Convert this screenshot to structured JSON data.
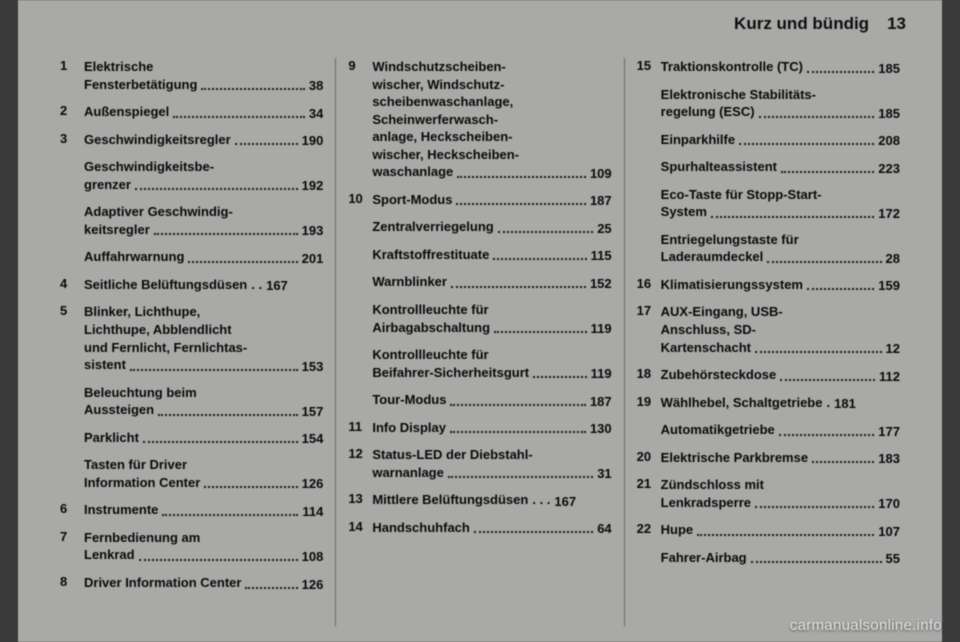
{
  "header": {
    "title": "Kurz und bündig",
    "page": "13"
  },
  "watermark": "carmanualsonline.info",
  "columns": [
    [
      {
        "num": "1",
        "lines": [
          "Elektrische",
          "Fensterbetätigung"
        ],
        "page": "38"
      },
      {
        "num": "2",
        "lines": [
          "Außenspiegel"
        ],
        "page": "34"
      },
      {
        "num": "3",
        "lines": [
          "Geschwindigkeitsregler"
        ],
        "page": "190"
      },
      {
        "num": "",
        "lines": [
          "Geschwindigkeitsbe-",
          "grenzer"
        ],
        "page": "192"
      },
      {
        "num": "",
        "lines": [
          "Adaptiver Geschwindig-",
          "keitsregler"
        ],
        "page": "193"
      },
      {
        "num": "",
        "lines": [
          "Auffahrwarnung"
        ],
        "page": "201"
      },
      {
        "num": "4",
        "lines": [
          "Seitliche Belüftungsdüsen"
        ],
        "page": "167",
        "nodots": true,
        "sep": ". ."
      },
      {
        "num": "5",
        "lines": [
          "Blinker, Lichthupe,",
          "Lichthupe, Abblendlicht",
          "und Fernlicht, Fernlichtas-",
          "sistent"
        ],
        "page": "153"
      },
      {
        "num": "",
        "lines": [
          "Beleuchtung beim",
          "Aussteigen"
        ],
        "page": "157"
      },
      {
        "num": "",
        "lines": [
          "Parklicht"
        ],
        "page": "154"
      },
      {
        "num": "",
        "lines": [
          "Tasten für Driver",
          "Information Center"
        ],
        "page": "126"
      },
      {
        "num": "6",
        "lines": [
          "Instrumente"
        ],
        "page": "114"
      },
      {
        "num": "7",
        "lines": [
          "Fernbedienung am",
          "Lenkrad"
        ],
        "page": "108"
      },
      {
        "num": "8",
        "lines": [
          "Driver Information Center"
        ],
        "page": "126"
      }
    ],
    [
      {
        "num": "9",
        "lines": [
          "Windschutzscheiben-",
          "wischer, Windschutz-",
          "scheibenwaschanlage,",
          "Scheinwerferwasch-",
          "anlage, Heckscheiben-",
          "wischer, Heckscheiben-",
          "waschanlage"
        ],
        "page": "109"
      },
      {
        "num": "10",
        "lines": [
          "Sport-Modus"
        ],
        "page": "187"
      },
      {
        "num": "",
        "lines": [
          "Zentralverriegelung"
        ],
        "page": "25"
      },
      {
        "num": "",
        "lines": [
          "Kraftstoffrestituate"
        ],
        "page": "115"
      },
      {
        "num": "",
        "lines": [
          "Warnblinker"
        ],
        "page": "152"
      },
      {
        "num": "",
        "lines": [
          "Kontrollleuchte für",
          "Airbagabschaltung"
        ],
        "page": "119"
      },
      {
        "num": "",
        "lines": [
          "Kontrollleuchte für",
          "Beifahrer-Sicherheitsgurt"
        ],
        "page": "119"
      },
      {
        "num": "",
        "lines": [
          "Tour-Modus"
        ],
        "page": "187"
      },
      {
        "num": "11",
        "lines": [
          "Info Display"
        ],
        "page": "130"
      },
      {
        "num": "12",
        "lines": [
          "Status-LED der Diebstahl-",
          "warnanlage"
        ],
        "page": "31"
      },
      {
        "num": "13",
        "lines": [
          "Mittlere Belüftungsdüsen"
        ],
        "page": "167",
        "nodots": true,
        "sep": ". . ."
      },
      {
        "num": "14",
        "lines": [
          "Handschuhfach"
        ],
        "page": "64"
      }
    ],
    [
      {
        "num": "15",
        "lines": [
          "Traktionskontrolle (TC)"
        ],
        "page": "185"
      },
      {
        "num": "",
        "lines": [
          "Elektronische Stabilitäts-",
          "regelung (ESC)"
        ],
        "page": "185"
      },
      {
        "num": "",
        "lines": [
          "Einparkhilfe"
        ],
        "page": "208"
      },
      {
        "num": "",
        "lines": [
          "Spurhalteassistent"
        ],
        "page": "223"
      },
      {
        "num": "",
        "lines": [
          "Eco-Taste für Stopp-Start-",
          "System"
        ],
        "page": "172"
      },
      {
        "num": "",
        "lines": [
          "Entriegelungstaste für",
          "Laderaumdeckel"
        ],
        "page": "28"
      },
      {
        "num": "16",
        "lines": [
          "Klimatisierungssystem"
        ],
        "page": "159"
      },
      {
        "num": "17",
        "lines": [
          "AUX-Eingang, USB-",
          "Anschluss, SD-",
          "Kartenschacht"
        ],
        "page": "12"
      },
      {
        "num": "18",
        "lines": [
          "Zubehörsteckdose"
        ],
        "page": "112"
      },
      {
        "num": "19",
        "lines": [
          "Wählhebel, Schaltgetriebe"
        ],
        "page": "181",
        "nodots": true,
        "sep": "."
      },
      {
        "num": "",
        "lines": [
          "Automatikgetriebe"
        ],
        "page": "177"
      },
      {
        "num": "20",
        "lines": [
          "Elektrische Parkbremse"
        ],
        "page": "183"
      },
      {
        "num": "21",
        "lines": [
          "Zündschloss mit",
          "Lenkradsperre"
        ],
        "page": "170"
      },
      {
        "num": "22",
        "lines": [
          "Hupe"
        ],
        "page": "107"
      },
      {
        "num": "",
        "lines": [
          "Fahrer-Airbag"
        ],
        "page": "55"
      }
    ]
  ]
}
